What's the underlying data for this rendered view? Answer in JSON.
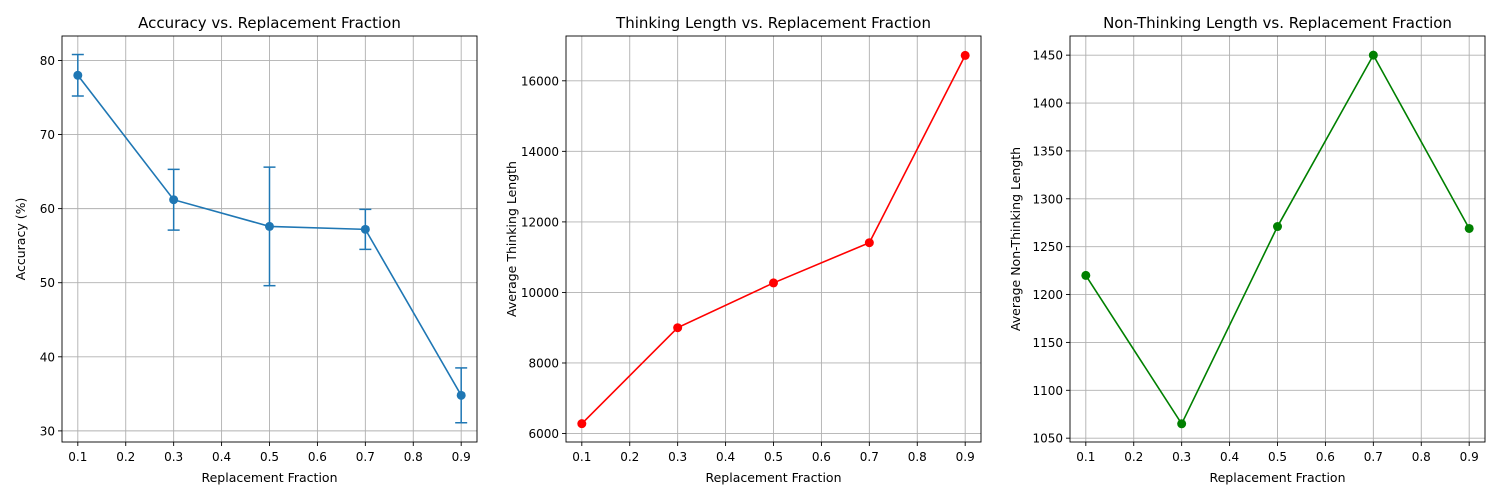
{
  "chart_data": [
    {
      "type": "line",
      "title": "Accuracy vs. Replacement Fraction",
      "xlabel": "Replacement Fraction",
      "ylabel": "Accuracy (%)",
      "xlim": [
        0.067,
        0.933
      ],
      "ylim": [
        28.5,
        83.3
      ],
      "xticks": [
        0.1,
        0.2,
        0.3,
        0.4,
        0.5,
        0.6,
        0.7,
        0.8,
        0.9
      ],
      "xtick_labels": [
        "0.1",
        "0.2",
        "0.3",
        "0.4",
        "0.5",
        "0.6",
        "0.7",
        "0.8",
        "0.9"
      ],
      "yticks": [
        30,
        40,
        50,
        60,
        70,
        80
      ],
      "ytick_labels": [
        "30",
        "40",
        "50",
        "60",
        "70",
        "80"
      ],
      "grid": true,
      "series": [
        {
          "color": "#1f77b4",
          "marker": "circle",
          "x": [
            0.1,
            0.3,
            0.5,
            0.7,
            0.9
          ],
          "y": [
            78.0,
            61.2,
            57.6,
            57.2,
            34.8
          ],
          "error": [
            2.8,
            4.1,
            8.0,
            2.7,
            3.7
          ]
        }
      ]
    },
    {
      "type": "line",
      "title": "Thinking Length vs. Replacement Fraction",
      "xlabel": "Replacement Fraction",
      "ylabel": "Average Thinking Length",
      "xlim": [
        0.067,
        0.933
      ],
      "ylim": [
        5760,
        17270
      ],
      "xticks": [
        0.1,
        0.2,
        0.3,
        0.4,
        0.5,
        0.6,
        0.7,
        0.8,
        0.9
      ],
      "xtick_labels": [
        "0.1",
        "0.2",
        "0.3",
        "0.4",
        "0.5",
        "0.6",
        "0.7",
        "0.8",
        "0.9"
      ],
      "yticks": [
        6000,
        8000,
        10000,
        12000,
        14000,
        16000
      ],
      "ytick_labels": [
        "6000",
        "8000",
        "10000",
        "12000",
        "14000",
        "16000"
      ],
      "grid": true,
      "series": [
        {
          "color": "#ff0000",
          "marker": "circle",
          "x": [
            0.1,
            0.3,
            0.5,
            0.7,
            0.9
          ],
          "y": [
            6280,
            9000,
            10270,
            11410,
            16720
          ]
        }
      ]
    },
    {
      "type": "line",
      "title": "Non-Thinking Length vs. Replacement Fraction",
      "xlabel": "Replacement Fraction",
      "ylabel": "Average Non-Thinking Length",
      "xlim": [
        0.067,
        0.933
      ],
      "ylim": [
        1046,
        1470
      ],
      "xticks": [
        0.1,
        0.2,
        0.3,
        0.4,
        0.5,
        0.6,
        0.7,
        0.8,
        0.9
      ],
      "xtick_labels": [
        "0.1",
        "0.2",
        "0.3",
        "0.4",
        "0.5",
        "0.6",
        "0.7",
        "0.8",
        "0.9"
      ],
      "yticks": [
        1050,
        1100,
        1150,
        1200,
        1250,
        1300,
        1350,
        1400,
        1450
      ],
      "ytick_labels": [
        "1050",
        "1100",
        "1150",
        "1200",
        "1250",
        "1300",
        "1350",
        "1400",
        "1450"
      ],
      "grid": true,
      "series": [
        {
          "color": "#008000",
          "marker": "circle",
          "x": [
            0.1,
            0.3,
            0.5,
            0.7,
            0.9
          ],
          "y": [
            1220,
            1065,
            1271,
            1450,
            1269
          ]
        }
      ]
    }
  ]
}
